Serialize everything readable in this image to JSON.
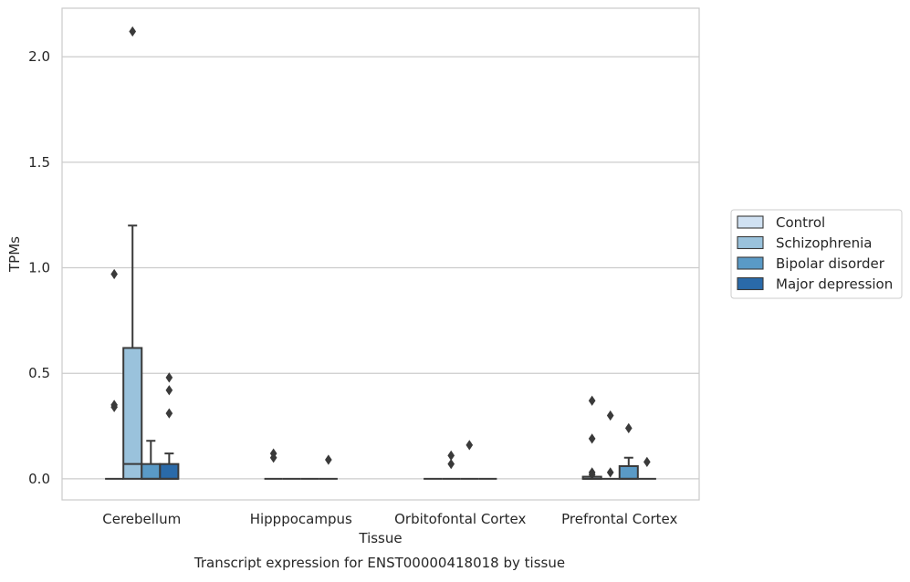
{
  "chart_data": {
    "type": "boxplot",
    "title": "",
    "xlabel": "Tissue",
    "ylabel": "TPMs",
    "caption": "Transcript expression for ENST00000418018 by tissue",
    "ylim": [
      -0.1,
      2.23
    ],
    "yticks": [
      0.0,
      0.5,
      1.0,
      1.5,
      2.0
    ],
    "ytick_labels": [
      "0.0",
      "0.5",
      "1.0",
      "1.5",
      "2.0"
    ],
    "grid": "horizontal",
    "legend_position": "right",
    "categories": [
      "Cerebellum",
      "Hipppocampus",
      "Orbitofontal Cortex",
      "Prefrontal Cortex"
    ],
    "series": [
      {
        "name": "Control",
        "color": "#d0e1f2",
        "boxes": [
          {
            "q1": 0.0,
            "median": 0.0,
            "q3": 0.0,
            "whislo": 0.0,
            "whishi": 0.0,
            "fliers": [
              0.97,
              0.35,
              0.34
            ]
          },
          {
            "q1": 0.0,
            "median": 0.0,
            "q3": 0.0,
            "whislo": 0.0,
            "whishi": 0.0,
            "fliers": [
              0.12,
              0.1
            ]
          },
          {
            "q1": 0.0,
            "median": 0.0,
            "q3": 0.0,
            "whislo": 0.0,
            "whishi": 0.0,
            "fliers": []
          },
          {
            "q1": 0.0,
            "median": 0.0,
            "q3": 0.01,
            "whislo": 0.0,
            "whishi": 0.01,
            "fliers": [
              0.37,
              0.19,
              0.03,
              0.02
            ]
          }
        ]
      },
      {
        "name": "Schizophrenia",
        "color": "#9ac2dc",
        "boxes": [
          {
            "q1": 0.0,
            "median": 0.07,
            "q3": 0.62,
            "whislo": 0.0,
            "whishi": 1.2,
            "fliers": [
              2.12
            ]
          },
          {
            "q1": 0.0,
            "median": 0.0,
            "q3": 0.0,
            "whislo": 0.0,
            "whishi": 0.0,
            "fliers": []
          },
          {
            "q1": 0.0,
            "median": 0.0,
            "q3": 0.0,
            "whislo": 0.0,
            "whishi": 0.0,
            "fliers": [
              0.11,
              0.07
            ]
          },
          {
            "q1": 0.0,
            "median": 0.0,
            "q3": 0.0,
            "whislo": 0.0,
            "whishi": 0.0,
            "fliers": [
              0.3,
              0.03
            ]
          }
        ]
      },
      {
        "name": "Bipolar disorder",
        "color": "#5a9ac6",
        "boxes": [
          {
            "q1": 0.0,
            "median": 0.0,
            "q3": 0.07,
            "whislo": 0.0,
            "whishi": 0.18,
            "fliers": []
          },
          {
            "q1": 0.0,
            "median": 0.0,
            "q3": 0.0,
            "whislo": 0.0,
            "whishi": 0.0,
            "fliers": []
          },
          {
            "q1": 0.0,
            "median": 0.0,
            "q3": 0.0,
            "whislo": 0.0,
            "whishi": 0.0,
            "fliers": [
              0.16
            ]
          },
          {
            "q1": 0.0,
            "median": 0.0,
            "q3": 0.06,
            "whislo": 0.0,
            "whishi": 0.1,
            "fliers": [
              0.24
            ]
          }
        ]
      },
      {
        "name": "Major depression",
        "color": "#2a6aa9",
        "boxes": [
          {
            "q1": 0.0,
            "median": 0.0,
            "q3": 0.07,
            "whislo": 0.0,
            "whishi": 0.12,
            "fliers": [
              0.48,
              0.42,
              0.31
            ]
          },
          {
            "q1": 0.0,
            "median": 0.0,
            "q3": 0.0,
            "whislo": 0.0,
            "whishi": 0.0,
            "fliers": [
              0.09
            ]
          },
          {
            "q1": 0.0,
            "median": 0.0,
            "q3": 0.0,
            "whislo": 0.0,
            "whishi": 0.0,
            "fliers": []
          },
          {
            "q1": 0.0,
            "median": 0.0,
            "q3": 0.0,
            "whislo": 0.0,
            "whishi": 0.0,
            "fliers": [
              0.08
            ]
          }
        ]
      }
    ]
  }
}
